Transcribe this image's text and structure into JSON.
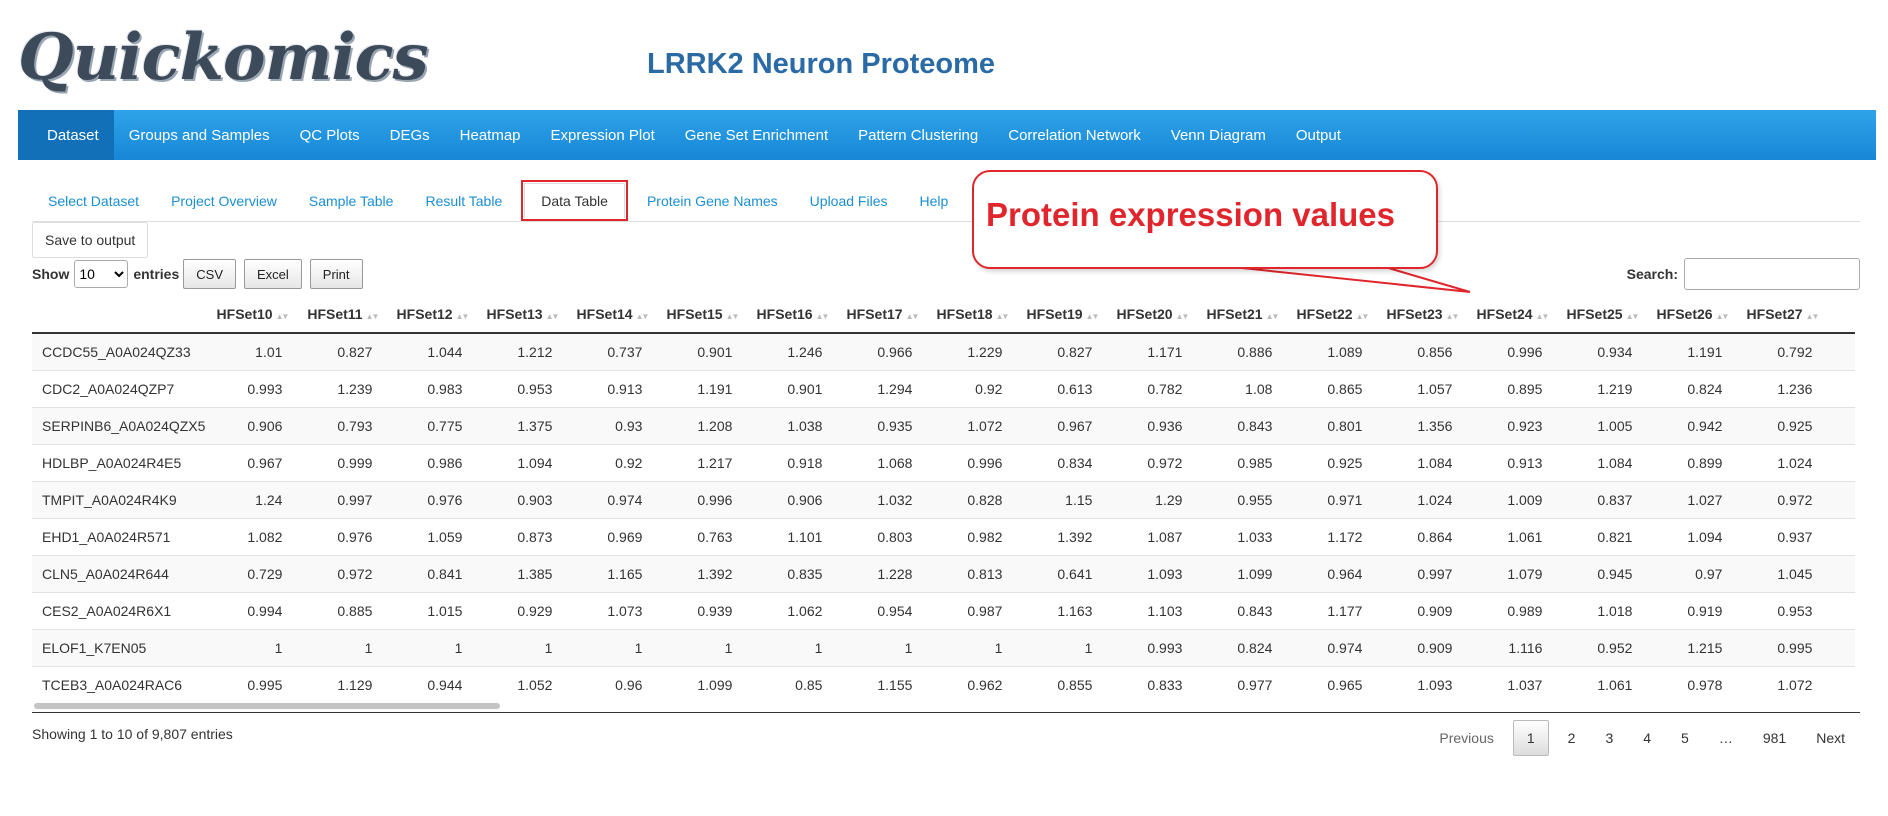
{
  "app": {
    "logo": "Quickomics",
    "title": "LRRK2 Neuron Proteome"
  },
  "topnav": [
    "Dataset",
    "Groups and Samples",
    "QC Plots",
    "DEGs",
    "Heatmap",
    "Expression Plot",
    "Gene Set Enrichment",
    "Pattern Clustering",
    "Correlation Network",
    "Venn Diagram",
    "Output"
  ],
  "subtabs": [
    "Select Dataset",
    "Project Overview",
    "Sample Table",
    "Result Table",
    "Data Table",
    "Protein Gene Names",
    "Upload Files",
    "Help"
  ],
  "active_subtab": "Data Table",
  "save_button": "Save to output",
  "controls": {
    "show_label": "Show",
    "entries_value": "10",
    "entries_label": "entries",
    "buttons": [
      "CSV",
      "Excel",
      "Print"
    ],
    "search_label": "Search:",
    "search_value": ""
  },
  "callout": {
    "text": "Protein expression values"
  },
  "table": {
    "headers": [
      "HFSet10",
      "HFSet11",
      "HFSet12",
      "HFSet13",
      "HFSet14",
      "HFSet15",
      "HFSet16",
      "HFSet17",
      "HFSet18",
      "HFSet19",
      "HFSet20",
      "HFSet21",
      "HFSet22",
      "HFSet23",
      "HFSet24",
      "HFSet25",
      "HFSet26",
      "HFSet27"
    ],
    "rows": [
      {
        "name": "CCDC55_A0A024QZ33",
        "values": [
          "1.01",
          "0.827",
          "1.044",
          "1.212",
          "0.737",
          "0.901",
          "1.246",
          "0.966",
          "1.229",
          "0.827",
          "1.171",
          "0.886",
          "1.089",
          "0.856",
          "0.996",
          "0.934",
          "1.191",
          "0.792"
        ]
      },
      {
        "name": "CDC2_A0A024QZP7",
        "values": [
          "0.993",
          "1.239",
          "0.983",
          "0.953",
          "0.913",
          "1.191",
          "0.901",
          "1.294",
          "0.92",
          "0.613",
          "0.782",
          "1.08",
          "0.865",
          "1.057",
          "0.895",
          "1.219",
          "0.824",
          "1.236"
        ]
      },
      {
        "name": "SERPINB6_A0A024QZX5",
        "values": [
          "0.906",
          "0.793",
          "0.775",
          "1.375",
          "0.93",
          "1.208",
          "1.038",
          "0.935",
          "1.072",
          "0.967",
          "0.936",
          "0.843",
          "0.801",
          "1.356",
          "0.923",
          "1.005",
          "0.942",
          "0.925"
        ]
      },
      {
        "name": "HDLBP_A0A024R4E5",
        "values": [
          "0.967",
          "0.999",
          "0.986",
          "1.094",
          "0.92",
          "1.217",
          "0.918",
          "1.068",
          "0.996",
          "0.834",
          "0.972",
          "0.985",
          "0.925",
          "1.084",
          "0.913",
          "1.084",
          "0.899",
          "1.024"
        ]
      },
      {
        "name": "TMPIT_A0A024R4K9",
        "values": [
          "1.24",
          "0.997",
          "0.976",
          "0.903",
          "0.974",
          "0.996",
          "0.906",
          "1.032",
          "0.828",
          "1.15",
          "1.29",
          "0.955",
          "0.971",
          "1.024",
          "1.009",
          "0.837",
          "1.027",
          "0.972"
        ]
      },
      {
        "name": "EHD1_A0A024R571",
        "values": [
          "1.082",
          "0.976",
          "1.059",
          "0.873",
          "0.969",
          "0.763",
          "1.101",
          "0.803",
          "0.982",
          "1.392",
          "1.087",
          "1.033",
          "1.172",
          "0.864",
          "1.061",
          "0.821",
          "1.094",
          "0.937"
        ]
      },
      {
        "name": "CLN5_A0A024R644",
        "values": [
          "0.729",
          "0.972",
          "0.841",
          "1.385",
          "1.165",
          "1.392",
          "0.835",
          "1.228",
          "0.813",
          "0.641",
          "1.093",
          "1.099",
          "0.964",
          "0.997",
          "1.079",
          "0.945",
          "0.97",
          "1.045"
        ]
      },
      {
        "name": "CES2_A0A024R6X1",
        "values": [
          "0.994",
          "0.885",
          "1.015",
          "0.929",
          "1.073",
          "0.939",
          "1.062",
          "0.954",
          "0.987",
          "1.163",
          "1.103",
          "0.843",
          "1.177",
          "0.909",
          "0.989",
          "1.018",
          "0.919",
          "0.953"
        ]
      },
      {
        "name": "ELOF1_K7EN05",
        "values": [
          "1",
          "1",
          "1",
          "1",
          "1",
          "1",
          "1",
          "1",
          "1",
          "1",
          "0.993",
          "0.824",
          "0.974",
          "0.909",
          "1.116",
          "0.952",
          "1.215",
          "0.995"
        ]
      },
      {
        "name": "TCEB3_A0A024RAC6",
        "values": [
          "0.995",
          "1.129",
          "0.944",
          "1.052",
          "0.96",
          "1.099",
          "0.85",
          "1.155",
          "0.962",
          "0.855",
          "0.833",
          "0.977",
          "0.965",
          "1.093",
          "1.037",
          "1.061",
          "0.978",
          "1.072"
        ]
      }
    ]
  },
  "footer": {
    "info": "Showing 1 to 10 of 9,807 entries",
    "pager": [
      "Previous",
      "1",
      "2",
      "3",
      "4",
      "5",
      "…",
      "981",
      "Next"
    ],
    "current_page": "1"
  },
  "colors": {
    "nav_blue": "#1787d6",
    "nav_active": "#1170b8",
    "title_blue": "#2a6aa5",
    "link_blue": "#1b8fd1",
    "highlight_red": "#e0262c"
  }
}
